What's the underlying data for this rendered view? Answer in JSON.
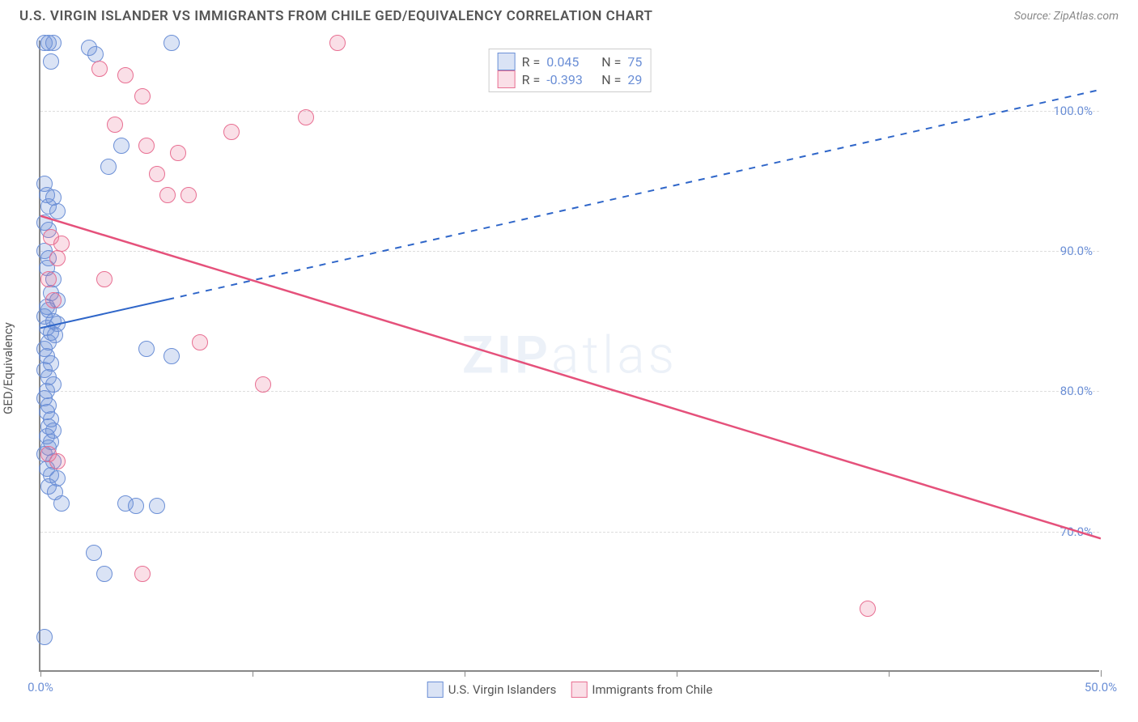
{
  "title": "U.S. VIRGIN ISLANDER VS IMMIGRANTS FROM CHILE GED/EQUIVALENCY CORRELATION CHART",
  "source": "Source: ZipAtlas.com",
  "watermark_a": "ZIP",
  "watermark_b": "atlas",
  "ylabel": "GED/Equivalency",
  "chart": {
    "type": "scatter",
    "background_color": "#ffffff",
    "grid_color": "#dddddd",
    "axis_color": "#888888",
    "xlim": [
      0,
      50
    ],
    "ylim": [
      60,
      105
    ],
    "yticks": [
      70,
      80,
      90,
      100
    ],
    "ytick_labels": [
      "70.0%",
      "80.0%",
      "90.0%",
      "100.0%"
    ],
    "xticks": [
      0,
      10,
      20,
      30,
      40,
      50
    ],
    "xtick_labels": {
      "0": "0.0%",
      "50": "50.0%"
    },
    "label_fontsize": 15,
    "label_color": "#6b8fd6",
    "marker_radius": 10,
    "marker_stroke_width": 1.5,
    "marker_fill_opacity": 0.25
  },
  "series": [
    {
      "name": "U.S. Virgin Islanders",
      "color_stroke": "#6b8fd6",
      "color_fill": "rgba(107,143,214,0.25)",
      "R": "0.045",
      "N": "75",
      "trend": {
        "x1": 0,
        "y1": 84.5,
        "x2": 50,
        "y2": 101.5,
        "solid_until_x": 6,
        "color": "#2f66c9",
        "width": 2
      },
      "points": [
        [
          0.2,
          104.8
        ],
        [
          0.4,
          104.8
        ],
        [
          0.6,
          104.8
        ],
        [
          0.5,
          103.5
        ],
        [
          2.3,
          104.5
        ],
        [
          2.6,
          104.0
        ],
        [
          6.2,
          104.8
        ],
        [
          0.2,
          94.8
        ],
        [
          0.3,
          94.0
        ],
        [
          0.4,
          93.2
        ],
        [
          0.6,
          93.8
        ],
        [
          0.8,
          92.8
        ],
        [
          0.2,
          92.0
        ],
        [
          0.4,
          91.5
        ],
        [
          3.2,
          96.0
        ],
        [
          3.8,
          97.5
        ],
        [
          0.2,
          90.0
        ],
        [
          0.4,
          89.5
        ],
        [
          0.3,
          88.8
        ],
        [
          0.6,
          88.0
        ],
        [
          0.5,
          87.0
        ],
        [
          0.8,
          86.5
        ],
        [
          0.3,
          86.0
        ],
        [
          0.4,
          85.8
        ],
        [
          0.2,
          85.3
        ],
        [
          0.6,
          85.0
        ],
        [
          0.8,
          84.8
        ],
        [
          0.3,
          84.5
        ],
        [
          0.5,
          84.2
        ],
        [
          0.7,
          84.0
        ],
        [
          0.4,
          83.5
        ],
        [
          0.2,
          83.0
        ],
        [
          5.0,
          83.0
        ],
        [
          6.2,
          82.5
        ],
        [
          0.3,
          82.5
        ],
        [
          0.5,
          82.0
        ],
        [
          0.2,
          81.5
        ],
        [
          0.4,
          81.0
        ],
        [
          0.6,
          80.5
        ],
        [
          0.3,
          80.0
        ],
        [
          0.2,
          79.5
        ],
        [
          0.4,
          79.0
        ],
        [
          0.3,
          78.5
        ],
        [
          0.5,
          78.0
        ],
        [
          0.4,
          77.5
        ],
        [
          0.6,
          77.2
        ],
        [
          0.3,
          76.8
        ],
        [
          0.5,
          76.4
        ],
        [
          0.4,
          76.0
        ],
        [
          0.2,
          75.5
        ],
        [
          0.6,
          75.0
        ],
        [
          0.3,
          74.5
        ],
        [
          0.5,
          74.0
        ],
        [
          0.8,
          73.8
        ],
        [
          0.4,
          73.2
        ],
        [
          0.7,
          72.8
        ],
        [
          1.0,
          72.0
        ],
        [
          4.0,
          72.0
        ],
        [
          4.5,
          71.8
        ],
        [
          5.5,
          71.8
        ],
        [
          2.5,
          68.5
        ],
        [
          3.0,
          67.0
        ],
        [
          0.2,
          62.5
        ]
      ]
    },
    {
      "name": "Immigrants from Chile",
      "color_stroke": "#e86f92",
      "color_fill": "rgba(232,111,146,0.22)",
      "R": "-0.393",
      "N": "29",
      "trend": {
        "x1": 0,
        "y1": 92.5,
        "x2": 50,
        "y2": 69.5,
        "solid_until_x": 50,
        "color": "#e5517b",
        "width": 2.5
      },
      "points": [
        [
          14.0,
          104.8
        ],
        [
          2.8,
          103.0
        ],
        [
          4.0,
          102.5
        ],
        [
          4.8,
          101.0
        ],
        [
          3.5,
          99.0
        ],
        [
          9.0,
          98.5
        ],
        [
          5.0,
          97.5
        ],
        [
          6.5,
          97.0
        ],
        [
          5.5,
          95.5
        ],
        [
          6.0,
          94.0
        ],
        [
          7.0,
          94.0
        ],
        [
          12.5,
          99.5
        ],
        [
          0.5,
          91.0
        ],
        [
          1.0,
          90.5
        ],
        [
          0.8,
          89.5
        ],
        [
          0.4,
          88.0
        ],
        [
          3.0,
          88.0
        ],
        [
          0.6,
          86.5
        ],
        [
          7.5,
          83.5
        ],
        [
          10.5,
          80.5
        ],
        [
          0.4,
          75.5
        ],
        [
          0.8,
          75.0
        ],
        [
          4.8,
          67.0
        ],
        [
          39.0,
          64.5
        ]
      ]
    }
  ],
  "corr_legend": {
    "r_label": "R =",
    "n_label": "N ="
  }
}
